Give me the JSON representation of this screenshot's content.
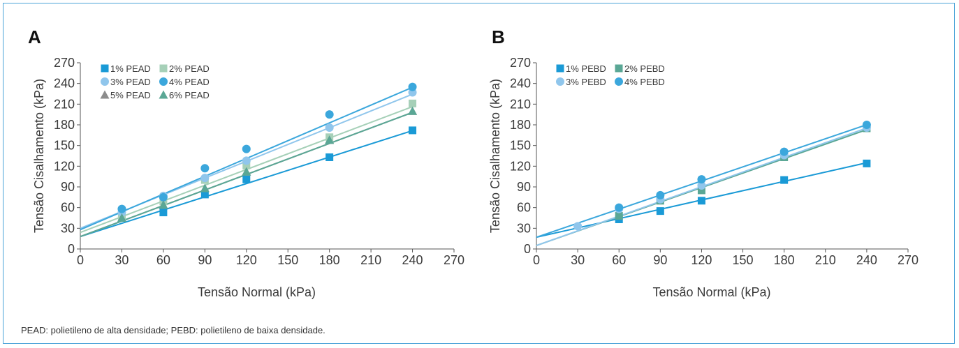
{
  "footnote": "PEAD: polietileno de alta densidade; PEBD: polietileno de baixa densidade.",
  "chart_data": [
    {
      "type": "scatter",
      "panel_label": "A",
      "xlabel": "Tensão Normal (kPa)",
      "ylabel": "Tensão Cisalhamento (kPa)",
      "xlim": [
        0,
        270
      ],
      "ylim": [
        0,
        270
      ],
      "xticks": [
        0,
        30,
        60,
        90,
        120,
        150,
        180,
        210,
        240,
        270
      ],
      "yticks": [
        0,
        30,
        60,
        90,
        120,
        150,
        180,
        210,
        240,
        270
      ],
      "grid": false,
      "legend_position": "top-left",
      "series": [
        {
          "name": "1% PEAD",
          "color": "#1a9ad6",
          "marker": "square",
          "x": [
            30,
            60,
            90,
            120,
            180,
            240
          ],
          "y": [
            47,
            53,
            79,
            101,
            133,
            172
          ],
          "fit": [
            18,
            0.64
          ]
        },
        {
          "name": "2% PEAD",
          "color": "#a6d0b8",
          "marker": "square",
          "x": [
            30,
            60,
            90,
            120,
            180,
            240
          ],
          "y": [
            47,
            69,
            100,
            121,
            162,
            211
          ],
          "fit": [
            24,
            0.76
          ]
        },
        {
          "name": "3% PEAD",
          "color": "#90c6ec",
          "marker": "circle",
          "x": [
            30,
            60,
            90,
            120,
            180,
            240
          ],
          "y": [
            53,
            77,
            103,
            128,
            176,
            227
          ],
          "fit": [
            30,
            0.81
          ]
        },
        {
          "name": "4% PEAD",
          "color": "#3ba7dc",
          "marker": "circle",
          "x": [
            30,
            60,
            90,
            120,
            180,
            240
          ],
          "y": [
            58,
            75,
            117,
            145,
            195,
            235
          ],
          "fit": [
            28,
            0.86
          ]
        },
        {
          "name": "5% PEAD",
          "color": "#8c8c8c",
          "marker": "triangle",
          "x": [
            30,
            60,
            90,
            120,
            180,
            240
          ],
          "y": [
            45,
            64,
            88,
            112,
            158,
            200
          ],
          "fit": [
            18,
            0.75
          ]
        },
        {
          "name": "6% PEAD",
          "color": "#5aa795",
          "marker": "triangle",
          "x": [
            30,
            60,
            90,
            120,
            180,
            240
          ],
          "y": [
            45,
            64,
            88,
            112,
            158,
            200
          ],
          "fit": [
            18,
            0.75
          ]
        }
      ]
    },
    {
      "type": "scatter",
      "panel_label": "B",
      "xlabel": "Tensão Normal (kPa)",
      "ylabel": "Tensão Cisalhamento (kPa)",
      "xlim": [
        0,
        270
      ],
      "ylim": [
        0,
        270
      ],
      "xticks": [
        0,
        30,
        60,
        90,
        120,
        150,
        180,
        210,
        240,
        270
      ],
      "yticks": [
        0,
        30,
        60,
        90,
        120,
        150,
        180,
        210,
        240,
        270
      ],
      "grid": false,
      "legend_position": "top-left",
      "series": [
        {
          "name": "1% PEBD",
          "color": "#1a9ad6",
          "marker": "square",
          "x": [
            60,
            90,
            120,
            180,
            240
          ],
          "y": [
            43,
            55,
            70,
            100,
            124
          ],
          "fit": [
            17,
            0.45
          ]
        },
        {
          "name": "2% PEBD",
          "color": "#5aa795",
          "marker": "square",
          "x": [
            60,
            90,
            120,
            180,
            240
          ],
          "y": [
            48,
            70,
            85,
            133,
            175
          ],
          "fit": [
            5,
            0.7
          ]
        },
        {
          "name": "3% PEBD",
          "color": "#90c6ec",
          "marker": "circle",
          "x": [
            30,
            60,
            90,
            120,
            180,
            240
          ],
          "y": [
            33,
            58,
            72,
            92,
            136,
            176
          ],
          "fit": [
            5,
            0.71
          ]
        },
        {
          "name": "4% PEBD",
          "color": "#3ba7dc",
          "marker": "circle",
          "x": [
            60,
            90,
            120,
            180,
            240
          ],
          "y": [
            60,
            78,
            101,
            141,
            180
          ],
          "fit": [
            17,
            0.68
          ]
        }
      ]
    }
  ]
}
